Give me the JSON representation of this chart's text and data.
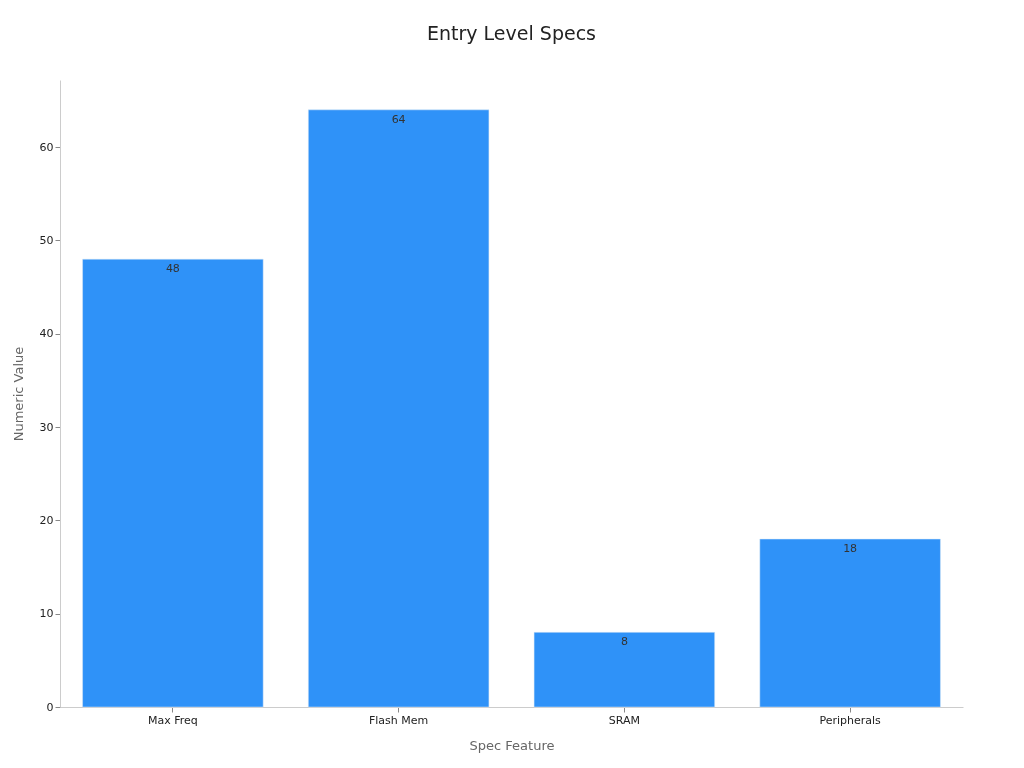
{
  "chart_data": {
    "type": "bar",
    "title": "Entry Level Specs",
    "xlabel": "Spec Feature",
    "ylabel": "Numeric Value",
    "categories": [
      "Max Freq",
      "Flash Mem",
      "SRAM",
      "Peripherals"
    ],
    "values": [
      48,
      64,
      8,
      18
    ],
    "color": "#2f92f8",
    "ylim": [
      0,
      67.2
    ],
    "yticks": [
      0,
      10,
      20,
      30,
      40,
      50,
      60
    ],
    "grid": false,
    "data_labels": true
  }
}
